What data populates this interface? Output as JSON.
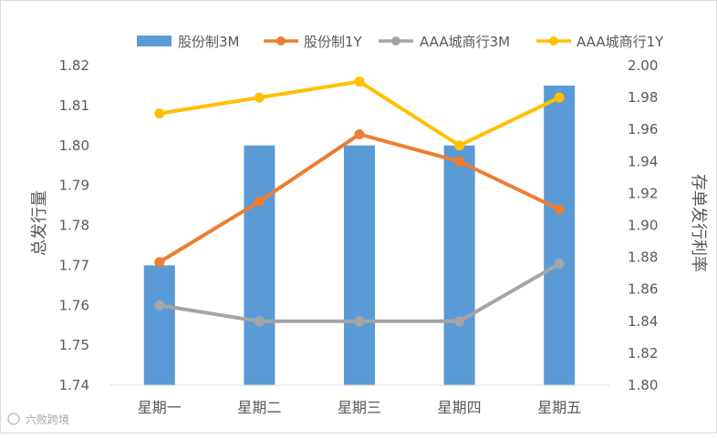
{
  "chart_data": {
    "type": "bar+line",
    "categories": [
      "星期一",
      "星期二",
      "星期三",
      "星期四",
      "星期五"
    ],
    "left_axis": {
      "label": "总发行量",
      "ylim": [
        1.74,
        1.82
      ],
      "ticks": [
        "1.74",
        "1.75",
        "1.76",
        "1.77",
        "1.78",
        "1.79",
        "1.80",
        "1.81",
        "1.82"
      ]
    },
    "right_axis": {
      "label": "存单发行利率",
      "ylim": [
        1.8,
        2.0
      ],
      "ticks": [
        "1.80",
        "1.82",
        "1.84",
        "1.86",
        "1.88",
        "1.90",
        "1.92",
        "1.94",
        "1.96",
        "1.98",
        "2.00"
      ]
    },
    "bar_series": {
      "name": "股份制3M",
      "axis": "left",
      "color": "#5B9BD5",
      "values": [
        1.77,
        1.8,
        1.8,
        1.8,
        1.815
      ]
    },
    "line_series": [
      {
        "name": "股份制1Y",
        "axis": "right",
        "color": "#ED7D31",
        "values": [
          1.877,
          1.915,
          1.957,
          1.94,
          1.91
        ]
      },
      {
        "name": "AAA城商行3M",
        "axis": "right",
        "color": "#A5A5A5",
        "values": [
          1.85,
          1.84,
          1.84,
          1.84,
          1.876
        ]
      },
      {
        "name": "AAA城商行1Y",
        "axis": "right",
        "color": "#FFC000",
        "values": [
          1.97,
          1.98,
          1.99,
          1.95,
          1.98
        ]
      }
    ],
    "legend_position": "top",
    "grid": false
  },
  "watermark": "六败跨境"
}
